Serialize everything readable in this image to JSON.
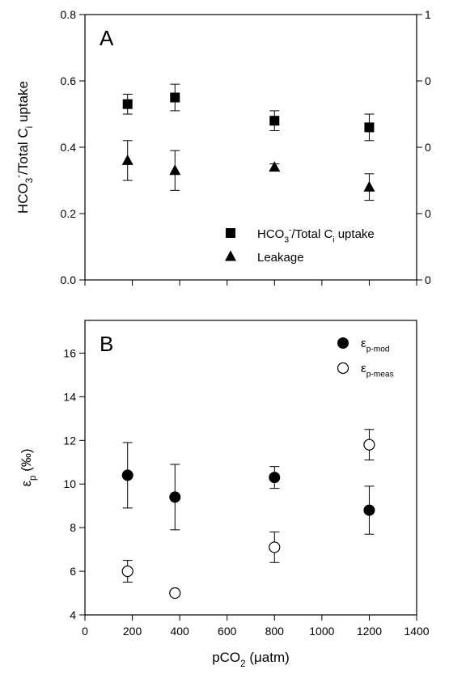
{
  "chart_data": [
    {
      "type": "scatter",
      "panel_label": "A",
      "ylabel_parts": [
        "HCO",
        "3",
        "-",
        "/Total C",
        "i",
        " uptake"
      ],
      "xlim": [
        0,
        1400
      ],
      "ylim": [
        0.0,
        0.8
      ],
      "yticks": [
        "0.0",
        "0.2",
        "0.4",
        "0.6",
        "0.8"
      ],
      "right_axis_ticks": [
        "0",
        "0",
        "0",
        "0",
        "1"
      ],
      "legend_position": "bottom-right",
      "series": [
        {
          "name_parts": [
            "HCO",
            "3",
            "-",
            "/Total C",
            "i",
            " uptake"
          ],
          "marker": "filled-square",
          "x": [
            180,
            380,
            800,
            1200
          ],
          "y": [
            0.53,
            0.55,
            0.48,
            0.46
          ],
          "err": [
            0.03,
            0.04,
            0.03,
            0.04
          ]
        },
        {
          "name": "Leakage",
          "marker": "filled-triangle",
          "x": [
            180,
            380,
            800,
            1200
          ],
          "y": [
            0.36,
            0.33,
            0.34,
            0.28
          ],
          "err": [
            0.06,
            0.06,
            0.01,
            0.04
          ]
        }
      ]
    },
    {
      "type": "scatter",
      "panel_label": "B",
      "ylabel_parts": [
        "ε",
        "p",
        " (‰)"
      ],
      "xlabel_parts": [
        "pCO",
        "2",
        " (μatm)"
      ],
      "xlim": [
        0,
        1400
      ],
      "xticks": [
        "0",
        "200",
        "400",
        "600",
        "800",
        "1000",
        "1200",
        "1400"
      ],
      "ylim": [
        4,
        17.5
      ],
      "yticks": [
        "4",
        "6",
        "8",
        "10",
        "12",
        "14",
        "16"
      ],
      "legend_position": "top-right",
      "series": [
        {
          "name_parts": [
            "ε",
            "p-mod"
          ],
          "marker": "filled-circle",
          "x": [
            180,
            380,
            800,
            1200
          ],
          "y": [
            10.4,
            9.4,
            10.3,
            8.8
          ],
          "err": [
            1.5,
            1.5,
            0.5,
            1.1
          ]
        },
        {
          "name_parts": [
            "ε",
            "p-meas"
          ],
          "marker": "open-circle",
          "x": [
            180,
            380,
            800,
            1200
          ],
          "y": [
            6.0,
            5.0,
            7.1,
            11.8
          ],
          "err": [
            0.5,
            0,
            0.7,
            0.7
          ]
        }
      ]
    }
  ]
}
